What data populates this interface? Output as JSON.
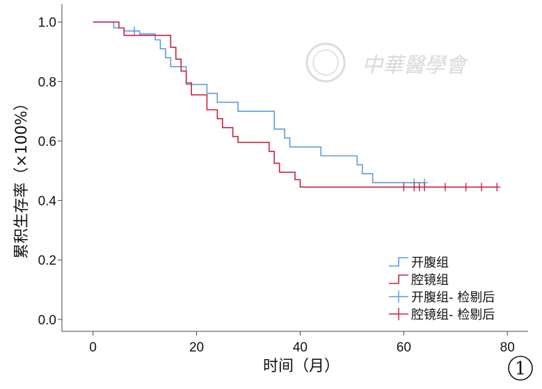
{
  "figure_label": "1",
  "watermark": {
    "text": "中華醫學會"
  },
  "chart_data": {
    "type": "line",
    "subtype": "kaplan-meier",
    "title": "",
    "xlabel": "时间（月）",
    "ylabel": "累积生存率（×100%）",
    "xlim": [
      -6,
      84
    ],
    "ylim": [
      -0.04,
      1.06
    ],
    "xticks": [
      0,
      20,
      40,
      60,
      80
    ],
    "yticks": [
      0.0,
      0.2,
      0.4,
      0.6,
      0.8,
      1.0
    ],
    "xtick_labels": [
      "0",
      "20",
      "40",
      "60",
      "80"
    ],
    "ytick_labels": [
      "0.0",
      "0.2",
      "0.4",
      "0.6",
      "0.8",
      "1.0"
    ],
    "grid": false,
    "legend_position": "bottom-right",
    "legend": [
      {
        "label": "开腹组",
        "kind": "step",
        "series": 0
      },
      {
        "label": "腔镜组",
        "kind": "step",
        "series": 1
      },
      {
        "label": "开腹组- 检剔后",
        "kind": "censor",
        "series": 0
      },
      {
        "label": "腔镜组- 检剔后",
        "kind": "censor",
        "series": 1
      }
    ],
    "series": [
      {
        "name": "开腹组",
        "color": "#5b9bd5",
        "steps": [
          [
            0,
            1.0
          ],
          [
            4,
            0.98
          ],
          [
            6,
            0.97
          ],
          [
            9,
            0.96
          ],
          [
            12,
            0.94
          ],
          [
            13,
            0.91
          ],
          [
            14,
            0.88
          ],
          [
            15,
            0.85
          ],
          [
            18,
            0.79
          ],
          [
            22,
            0.76
          ],
          [
            24,
            0.73
          ],
          [
            28,
            0.7
          ],
          [
            35,
            0.64
          ],
          [
            37,
            0.61
          ],
          [
            38,
            0.58
          ],
          [
            44,
            0.55
          ],
          [
            51,
            0.52
          ],
          [
            52,
            0.49
          ],
          [
            54,
            0.46
          ],
          [
            64,
            0.46
          ]
        ],
        "censored": [
          [
            8,
            0.97
          ],
          [
            62,
            0.46
          ],
          [
            64,
            0.46
          ]
        ]
      },
      {
        "name": "腔镜组",
        "color": "#c8203f",
        "steps": [
          [
            0,
            1.0
          ],
          [
            5,
            0.98
          ],
          [
            6,
            0.955
          ],
          [
            12,
            0.955
          ],
          [
            15,
            0.915
          ],
          [
            16,
            0.875
          ],
          [
            17,
            0.835
          ],
          [
            18,
            0.795
          ],
          [
            19,
            0.755
          ],
          [
            22,
            0.705
          ],
          [
            24,
            0.675
          ],
          [
            25,
            0.645
          ],
          [
            27,
            0.615
          ],
          [
            28,
            0.595
          ],
          [
            34,
            0.565
          ],
          [
            35,
            0.525
          ],
          [
            36,
            0.495
          ],
          [
            39,
            0.47
          ],
          [
            40,
            0.445
          ],
          [
            78,
            0.445
          ]
        ],
        "censored": [
          [
            60,
            0.445
          ],
          [
            62,
            0.445
          ],
          [
            63,
            0.445
          ],
          [
            64,
            0.445
          ],
          [
            68,
            0.445
          ],
          [
            72,
            0.445
          ],
          [
            75,
            0.445
          ],
          [
            78,
            0.445
          ]
        ]
      }
    ]
  }
}
